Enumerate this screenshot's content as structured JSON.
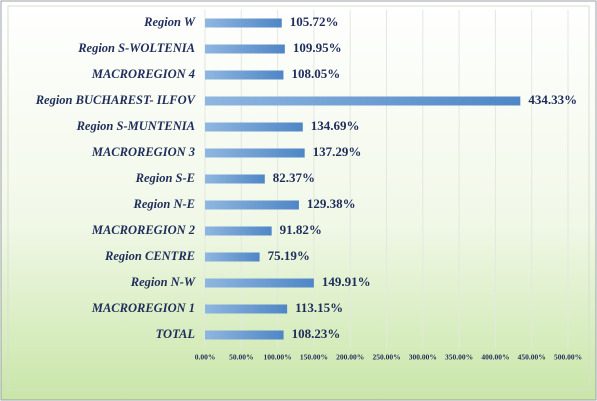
{
  "chart_data": {
    "type": "hbar",
    "categories": [
      "Region W",
      "Region S-WOLTENIA",
      "MACROREGION 4",
      "Region BUCHAREST- ILFOV",
      "Region S-MUNTENIA",
      "MACROREGION 3",
      "Region S-E",
      "Region N-E",
      "MACROREGION 2",
      "Region CENTRE",
      "Region N-W",
      "MACROREGION 1",
      "TOTAL"
    ],
    "values": [
      105.72,
      109.95,
      108.05,
      434.33,
      134.69,
      137.29,
      82.37,
      129.38,
      91.82,
      75.19,
      149.91,
      113.15,
      108.23
    ],
    "value_labels": [
      "105.72%",
      "109.95%",
      "108.05%",
      "434.33%",
      "134.69%",
      "137.29%",
      "82.37%",
      "129.38%",
      "91.82%",
      "75.19%",
      "149.91%",
      "113.15%",
      "108.23%"
    ],
    "color": "#5b8fc9",
    "xlim": [
      0,
      500
    ],
    "xticks": [
      {
        "value": 0,
        "label": "0.00%"
      },
      {
        "value": 50,
        "label": "50.00%"
      },
      {
        "value": 100,
        "label": "100.00%"
      },
      {
        "value": 150,
        "label": "150.00%"
      },
      {
        "value": 200,
        "label": "200.00%"
      },
      {
        "value": 250,
        "label": "250.00%"
      },
      {
        "value": 300,
        "label": "300.00%"
      },
      {
        "value": 350,
        "label": "350.00%"
      },
      {
        "value": 400,
        "label": "400.00%"
      },
      {
        "value": 450,
        "label": "450.00%"
      },
      {
        "value": 500,
        "label": "500.00%"
      }
    ],
    "grid": true
  }
}
